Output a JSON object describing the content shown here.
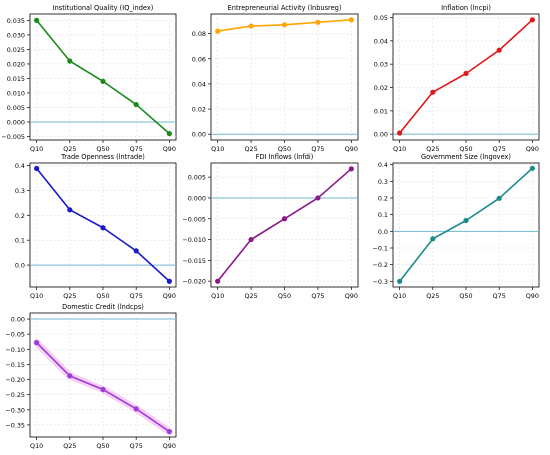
{
  "chart_data": [
    {
      "type": "line",
      "title": "Institutional Quality (IQ_index)",
      "categories": [
        "Q10",
        "Q25",
        "Q50",
        "Q75",
        "Q90"
      ],
      "series": [
        {
          "values": [
            0.035,
            0.021,
            0.014,
            0.006,
            -0.004
          ]
        }
      ],
      "ylim": [
        -0.0062,
        0.0372
      ],
      "yticks": [
        0.035,
        0.03,
        0.025,
        0.02,
        0.015,
        0.01,
        0.005,
        0.0,
        -0.005
      ],
      "ytick_labels": [
        "0.035",
        "0.030",
        "0.025",
        "0.020",
        "0.015",
        "0.010",
        "0.005",
        "0.000",
        "−0.005"
      ],
      "color": "#1a8a1a",
      "zero_line": true,
      "grid": true
    },
    {
      "type": "line",
      "title": "Entrepreneurial Activity (lnbusreg)",
      "categories": [
        "Q10",
        "Q25",
        "Q50",
        "Q75",
        "Q90"
      ],
      "series": [
        {
          "values": [
            0.082,
            0.086,
            0.087,
            0.089,
            0.091
          ]
        }
      ],
      "ylim": [
        -0.0046,
        0.0956
      ],
      "yticks": [
        0.08,
        0.06,
        0.04,
        0.02,
        0.0
      ],
      "ytick_labels": [
        "0.08",
        "0.06",
        "0.04",
        "0.02",
        "0.00"
      ],
      "color": "#ffa500",
      "zero_line": true,
      "grid": true
    },
    {
      "type": "line",
      "title": "Inflation (lncpi)",
      "categories": [
        "Q10",
        "Q25",
        "Q50",
        "Q75",
        "Q90"
      ],
      "series": [
        {
          "values": [
            0.0005,
            0.018,
            0.026,
            0.036,
            0.049
          ]
        }
      ],
      "ylim": [
        -0.0025,
        0.0515
      ],
      "yticks": [
        0.05,
        0.04,
        0.03,
        0.02,
        0.01,
        0.0
      ],
      "ytick_labels": [
        "0.05",
        "0.04",
        "0.03",
        "0.02",
        "0.01",
        "0.00"
      ],
      "color": "#e01a1a",
      "zero_line": true,
      "grid": true
    },
    {
      "type": "line",
      "title": "Trade Openness (lntrade)",
      "categories": [
        "Q10",
        "Q25",
        "Q50",
        "Q75",
        "Q90"
      ],
      "series": [
        {
          "values": [
            0.388,
            0.222,
            0.15,
            0.057,
            -0.065
          ]
        }
      ],
      "ylim": [
        -0.088,
        0.41
      ],
      "yticks": [
        0.4,
        0.3,
        0.2,
        0.1,
        0.0
      ],
      "ytick_labels": [
        "0.4",
        "0.3",
        "0.2",
        "0.1",
        "0.0"
      ],
      "color": "#1a1ac8",
      "zero_line": true,
      "grid": true
    },
    {
      "type": "line",
      "title": "FDI Inflows (lnfdi)",
      "categories": [
        "Q10",
        "Q25",
        "Q50",
        "Q75",
        "Q90"
      ],
      "series": [
        {
          "values": [
            -0.02,
            -0.01,
            -0.005,
            0.0,
            0.007
          ]
        }
      ],
      "ylim": [
        -0.0214,
        0.0084
      ],
      "yticks": [
        0.005,
        0.0,
        -0.005,
        -0.01,
        -0.015,
        -0.02
      ],
      "ytick_labels": [
        "0.005",
        "0.000",
        "−0.005",
        "−0.010",
        "−0.015",
        "−0.020"
      ],
      "color": "#8a1a8a",
      "zero_line": true,
      "grid": true
    },
    {
      "type": "line",
      "title": "Government Size (lngovex)",
      "categories": [
        "Q10",
        "Q25",
        "Q50",
        "Q75",
        "Q90"
      ],
      "series": [
        {
          "values": [
            -0.3,
            -0.045,
            0.065,
            0.198,
            0.378
          ]
        }
      ],
      "ylim": [
        -0.334,
        0.41
      ],
      "yticks": [
        0.4,
        0.3,
        0.2,
        0.1,
        0.0,
        -0.1,
        -0.2,
        -0.3
      ],
      "ytick_labels": [
        "0.4",
        "0.3",
        "0.2",
        "0.1",
        "0.0",
        "−0.1",
        "−0.2",
        "−0.3"
      ],
      "color": "#1a8a8a",
      "zero_line": true,
      "grid": true
    },
    {
      "type": "line",
      "title": "Domestic Credit (lndcps)",
      "categories": [
        "Q10",
        "Q25",
        "Q50",
        "Q75",
        "Q90"
      ],
      "series": [
        {
          "values": [
            -0.078,
            -0.188,
            -0.233,
            -0.297,
            -0.372
          ]
        }
      ],
      "ylim": [
        -0.39,
        0.02
      ],
      "yticks": [
        0.0,
        -0.05,
        -0.1,
        -0.15,
        -0.2,
        -0.25,
        -0.3,
        -0.35
      ],
      "ytick_labels": [
        "0.00",
        "−0.05",
        "−0.10",
        "−0.15",
        "−0.20",
        "−0.25",
        "−0.30",
        "−0.35"
      ],
      "color": "#9b3fd6",
      "zero_line": true,
      "grid": true,
      "band": true,
      "band_color": "#f4a6f4"
    }
  ]
}
